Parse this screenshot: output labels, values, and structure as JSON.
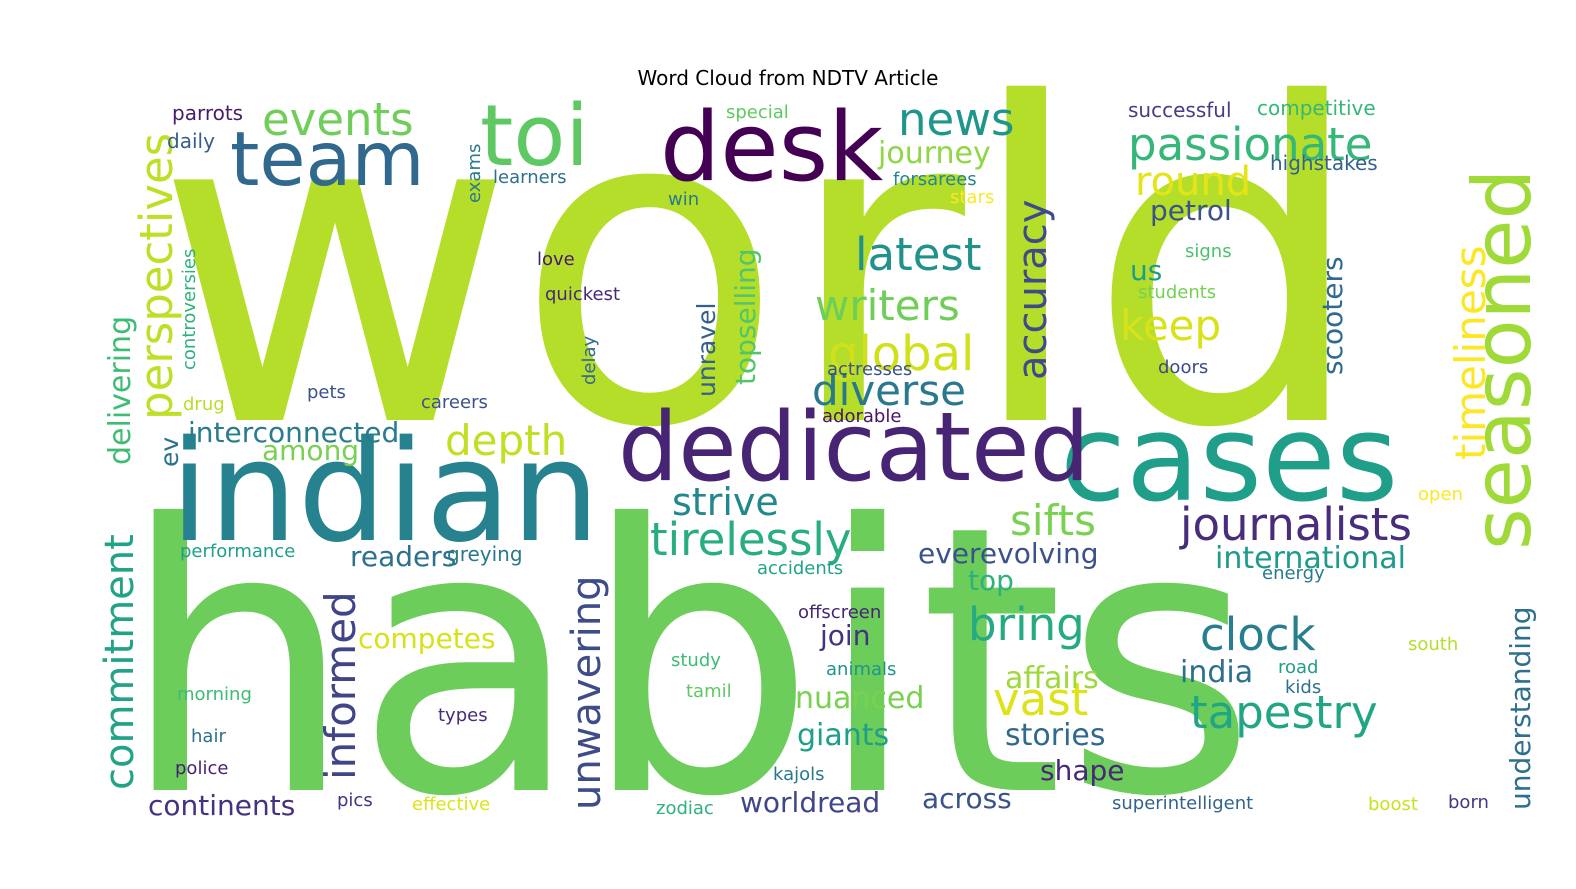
{
  "title": "Word Cloud from NDTV Article",
  "words": [
    {
      "text": "world",
      "color": "#b5de2b",
      "vertical": false
    },
    {
      "text": "habits",
      "color": "#6ccd5a",
      "vertical": false
    },
    {
      "text": "indian",
      "color": "#26828e",
      "vertical": false
    },
    {
      "text": "cases",
      "color": "#1f9e89",
      "vertical": false
    },
    {
      "text": "dedicated",
      "color": "#482475",
      "vertical": false
    },
    {
      "text": "desk",
      "color": "#440154",
      "vertical": false
    },
    {
      "text": "team",
      "color": "#31688e",
      "vertical": false
    },
    {
      "text": "toi",
      "color": "#5ec962",
      "vertical": false
    },
    {
      "text": "seasoned",
      "color": "#a0da39",
      "vertical": true
    },
    {
      "text": "passionate",
      "color": "#35b779",
      "vertical": false
    },
    {
      "text": "events",
      "color": "#6ece58",
      "vertical": false
    },
    {
      "text": "news",
      "color": "#1f968b",
      "vertical": false
    },
    {
      "text": "perspectives",
      "color": "#bddf26",
      "vertical": true
    },
    {
      "text": "latest",
      "color": "#21918c",
      "vertical": false
    },
    {
      "text": "writers",
      "color": "#6ece58",
      "vertical": false
    },
    {
      "text": "global",
      "color": "#d0e11c",
      "vertical": false
    },
    {
      "text": "diverse",
      "color": "#2a788e",
      "vertical": false
    },
    {
      "text": "accuracy",
      "color": "#3e4a89",
      "vertical": true
    },
    {
      "text": "journey",
      "color": "#8fd744",
      "vertical": false
    },
    {
      "text": "round",
      "color": "#e5e419",
      "vertical": false
    },
    {
      "text": "petrol",
      "color": "#3b528b",
      "vertical": false
    },
    {
      "text": "keep",
      "color": "#d8e219",
      "vertical": false
    },
    {
      "text": "timeliness",
      "color": "#fde725",
      "vertical": true
    },
    {
      "text": "journalists",
      "color": "#472d7b",
      "vertical": false
    },
    {
      "text": "sifts",
      "color": "#7ad151",
      "vertical": false
    },
    {
      "text": "tirelessly",
      "color": "#27ad81",
      "vertical": false
    },
    {
      "text": "strive",
      "color": "#23888e",
      "vertical": false
    },
    {
      "text": "depth",
      "color": "#c2df23",
      "vertical": false
    },
    {
      "text": "interconnected",
      "color": "#287c8e",
      "vertical": false
    },
    {
      "text": "among",
      "color": "#7ad151",
      "vertical": false
    },
    {
      "text": "international",
      "color": "#1e9b8a",
      "vertical": false
    },
    {
      "text": "everevolving",
      "color": "#3b528b",
      "vertical": false
    },
    {
      "text": "clock",
      "color": "#277f8e",
      "vertical": false
    },
    {
      "text": "bring",
      "color": "#25ab82",
      "vertical": false
    },
    {
      "text": "vast",
      "color": "#dde318",
      "vertical": false
    },
    {
      "text": "tapestry",
      "color": "#21a685",
      "vertical": false
    },
    {
      "text": "affairs",
      "color": "#9dd93b",
      "vertical": false
    },
    {
      "text": "india",
      "color": "#2d708e",
      "vertical": false
    },
    {
      "text": "stories",
      "color": "#31688e",
      "vertical": false
    },
    {
      "text": "shape",
      "color": "#482878",
      "vertical": false
    },
    {
      "text": "across",
      "color": "#3b528b",
      "vertical": false
    },
    {
      "text": "worldread",
      "color": "#3f4788",
      "vertical": false
    },
    {
      "text": "giants",
      "color": "#1f9e89",
      "vertical": false
    },
    {
      "text": "nuanced",
      "color": "#7ad151",
      "vertical": false
    },
    {
      "text": "join",
      "color": "#46337f",
      "vertical": false
    },
    {
      "text": "top",
      "color": "#2db27d",
      "vertical": false
    },
    {
      "text": "competes",
      "color": "#d8e219",
      "vertical": false
    },
    {
      "text": "readers",
      "color": "#2c728e",
      "vertical": false
    },
    {
      "text": "greying",
      "color": "#2a788e",
      "vertical": false
    },
    {
      "text": "informed",
      "color": "#414487",
      "vertical": true
    },
    {
      "text": "unwavering",
      "color": "#3e4c8a",
      "vertical": true
    },
    {
      "text": "commitment",
      "color": "#20a386",
      "vertical": true
    },
    {
      "text": "delivering",
      "color": "#3fbc73",
      "vertical": true
    },
    {
      "text": "continents",
      "color": "#46327e",
      "vertical": false
    },
    {
      "text": "understanding",
      "color": "#2e6f8e",
      "vertical": true
    },
    {
      "text": "scooters",
      "color": "#306a8e",
      "vertical": true
    },
    {
      "text": "topselling",
      "color": "#52c569",
      "vertical": true
    },
    {
      "text": "unravel",
      "color": "#355f8d",
      "vertical": true
    },
    {
      "text": "us",
      "color": "#1e9d89",
      "vertical": false
    },
    {
      "text": "parrots",
      "color": "#481a6c",
      "vertical": false
    },
    {
      "text": "daily",
      "color": "#355e8d",
      "vertical": false
    },
    {
      "text": "exams",
      "color": "#2a788e",
      "vertical": true
    },
    {
      "text": "learners",
      "color": "#2d708e",
      "vertical": false
    },
    {
      "text": "win",
      "color": "#2a788e",
      "vertical": false
    },
    {
      "text": "special",
      "color": "#5ec962",
      "vertical": false
    },
    {
      "text": "successful",
      "color": "#433e85",
      "vertical": false
    },
    {
      "text": "competitive",
      "color": "#35b779",
      "vertical": false
    },
    {
      "text": "highstakes",
      "color": "#33638d",
      "vertical": false
    },
    {
      "text": "forsarees",
      "color": "#24868e",
      "vertical": false
    },
    {
      "text": "stars",
      "color": "#fde725",
      "vertical": false
    },
    {
      "text": "signs",
      "color": "#4ac16d",
      "vertical": false
    },
    {
      "text": "students",
      "color": "#75d054",
      "vertical": false
    },
    {
      "text": "love",
      "color": "#481a6c",
      "vertical": false
    },
    {
      "text": "quickest",
      "color": "#482878",
      "vertical": false
    },
    {
      "text": "controversies",
      "color": "#2db27d",
      "vertical": true
    },
    {
      "text": "delay",
      "color": "#31688e",
      "vertical": true
    },
    {
      "text": "drug",
      "color": "#b8de29",
      "vertical": false
    },
    {
      "text": "pets",
      "color": "#3b528b",
      "vertical": false
    },
    {
      "text": "careers",
      "color": "#3b528b",
      "vertical": false
    },
    {
      "text": "actresses",
      "color": "#3a538b",
      "vertical": false
    },
    {
      "text": "adorable",
      "color": "#471365",
      "vertical": false
    },
    {
      "text": "doors",
      "color": "#3f4889",
      "vertical": false
    },
    {
      "text": "ev",
      "color": "#2c728e",
      "vertical": true
    },
    {
      "text": "open",
      "color": "#fde725",
      "vertical": false
    },
    {
      "text": "energy",
      "color": "#29798e",
      "vertical": false
    },
    {
      "text": "performance",
      "color": "#1fa088",
      "vertical": false
    },
    {
      "text": "accidents",
      "color": "#20a386",
      "vertical": false
    },
    {
      "text": "offscreen",
      "color": "#482475",
      "vertical": false
    },
    {
      "text": "south",
      "color": "#b5de2b",
      "vertical": false
    },
    {
      "text": "road",
      "color": "#1f9e89",
      "vertical": false
    },
    {
      "text": "kids",
      "color": "#2c728e",
      "vertical": false
    },
    {
      "text": "study",
      "color": "#3dbc74",
      "vertical": false
    },
    {
      "text": "tamil",
      "color": "#5ec962",
      "vertical": false
    },
    {
      "text": "animals",
      "color": "#1f948c",
      "vertical": false
    },
    {
      "text": "morning",
      "color": "#3dbc74",
      "vertical": false
    },
    {
      "text": "types",
      "color": "#472c7a",
      "vertical": false
    },
    {
      "text": "hair",
      "color": "#2d708e",
      "vertical": false
    },
    {
      "text": "police",
      "color": "#481f70",
      "vertical": false
    },
    {
      "text": "kajols",
      "color": "#2a788e",
      "vertical": false
    },
    {
      "text": "pics",
      "color": "#46337f",
      "vertical": false
    },
    {
      "text": "effective",
      "color": "#dde318",
      "vertical": false
    },
    {
      "text": "zodiac",
      "color": "#2db27d",
      "vertical": false
    },
    {
      "text": "superintelligent",
      "color": "#33638d",
      "vertical": false
    },
    {
      "text": "boost",
      "color": "#cae11f",
      "vertical": false
    },
    {
      "text": "born",
      "color": "#453781",
      "vertical": false
    }
  ]
}
